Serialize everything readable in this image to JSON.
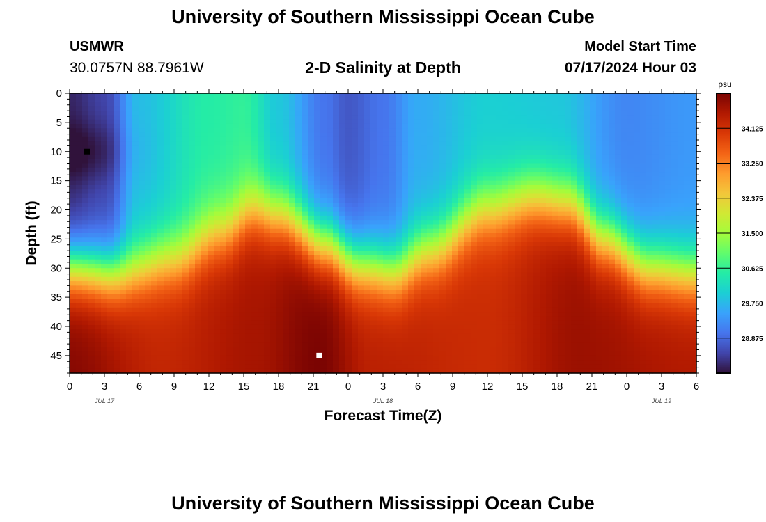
{
  "header": {
    "title": "University of Southern Mississippi Ocean Cube",
    "station_id": "USMWR",
    "station_coords": "30.0757N  88.7961W",
    "plot_title": "2-D Salinity at Depth",
    "model_start_label": "Model Start Time",
    "model_start_time": "07/17/2024 Hour 03"
  },
  "footer": {
    "title": "University of Southern Mississippi Ocean Cube"
  },
  "chart_data": {
    "type": "heatmap",
    "title": "2-D Salinity at Depth",
    "xlabel": "Forecast Time(Z)",
    "ylabel": "Depth (ft)",
    "x_range_hours": [
      0,
      54
    ],
    "y_range_ft": [
      0,
      48
    ],
    "y_inverted": true,
    "x_tick_labels": [
      "0",
      "3",
      "6",
      "9",
      "12",
      "15",
      "18",
      "21",
      "0",
      "3",
      "6",
      "9",
      "12",
      "15",
      "18",
      "21",
      "0",
      "3",
      "6"
    ],
    "y_tick_labels": [
      "0",
      "5",
      "10",
      "15",
      "20",
      "25",
      "30",
      "35",
      "40",
      "45"
    ],
    "date_labels": [
      {
        "label": "JUL 17",
        "hour": 3
      },
      {
        "label": "JUL 18",
        "hour": 27
      },
      {
        "label": "JUL 19",
        "hour": 51
      }
    ],
    "colorbar": {
      "unit": "psu",
      "min": 28.0,
      "max": 35.0,
      "tick_labels": [
        "28.875",
        "29.750",
        "30.625",
        "31.500",
        "32.375",
        "33.250",
        "34.125"
      ],
      "tick_values": [
        28.875,
        29.75,
        30.625,
        31.5,
        32.375,
        33.25,
        34.125
      ],
      "colormap": [
        "#30123b",
        "#4145ab",
        "#4675ed",
        "#39a2fc",
        "#1bcfd4",
        "#24eca6",
        "#61fc6c",
        "#a4fc3b",
        "#d1e834",
        "#f3c63a",
        "#fe9b2d",
        "#f36315",
        "#d93806",
        "#b11901",
        "#7a0402"
      ]
    },
    "grid": false,
    "interface_depth_ft": [
      {
        "hour": 0,
        "depth": 30
      },
      {
        "hour": 4,
        "depth": 31
      },
      {
        "hour": 9,
        "depth": 28.5
      },
      {
        "hour": 13,
        "depth": 24
      },
      {
        "hour": 16,
        "depth": 20
      },
      {
        "hour": 18,
        "depth": 21
      },
      {
        "hour": 22,
        "depth": 26
      },
      {
        "hour": 25,
        "depth": 29.5
      },
      {
        "hour": 28,
        "depth": 30.5
      },
      {
        "hour": 31,
        "depth": 27
      },
      {
        "hour": 36,
        "depth": 20
      },
      {
        "hour": 40,
        "depth": 18
      },
      {
        "hour": 43,
        "depth": 19
      },
      {
        "hour": 46,
        "depth": 25
      },
      {
        "hour": 50,
        "depth": 30
      },
      {
        "hour": 54,
        "depth": 31
      }
    ],
    "surface_salinity_psu": [
      {
        "hour": 0,
        "value": 28.2
      },
      {
        "hour": 3,
        "value": 28.5
      },
      {
        "hour": 6,
        "value": 29.8
      },
      {
        "hour": 12,
        "value": 30.5
      },
      {
        "hour": 15,
        "value": 30.6
      },
      {
        "hour": 18,
        "value": 29.9
      },
      {
        "hour": 22,
        "value": 29.0
      },
      {
        "hour": 24,
        "value": 28.7
      },
      {
        "hour": 27,
        "value": 29.0
      },
      {
        "hour": 30,
        "value": 29.6
      },
      {
        "hour": 36,
        "value": 30.0
      },
      {
        "hour": 42,
        "value": 29.9
      },
      {
        "hour": 48,
        "value": 29.2
      },
      {
        "hour": 54,
        "value": 29.4
      }
    ],
    "bottom_salinity_psu": [
      {
        "hour": 0,
        "value": 34.9
      },
      {
        "hour": 8,
        "value": 34.3
      },
      {
        "hour": 16,
        "value": 34.6
      },
      {
        "hour": 21.5,
        "value": 35.0
      },
      {
        "hour": 26,
        "value": 34.4
      },
      {
        "hour": 36,
        "value": 34.2
      },
      {
        "hour": 44,
        "value": 34.7
      },
      {
        "hour": 54,
        "value": 34.5
      }
    ],
    "markers": [
      {
        "hour": 1.5,
        "depth": 10,
        "type": "minimum",
        "color": "#000000"
      },
      {
        "hour": 21.5,
        "depth": 45,
        "type": "maximum",
        "color": "#ffffff"
      }
    ]
  }
}
